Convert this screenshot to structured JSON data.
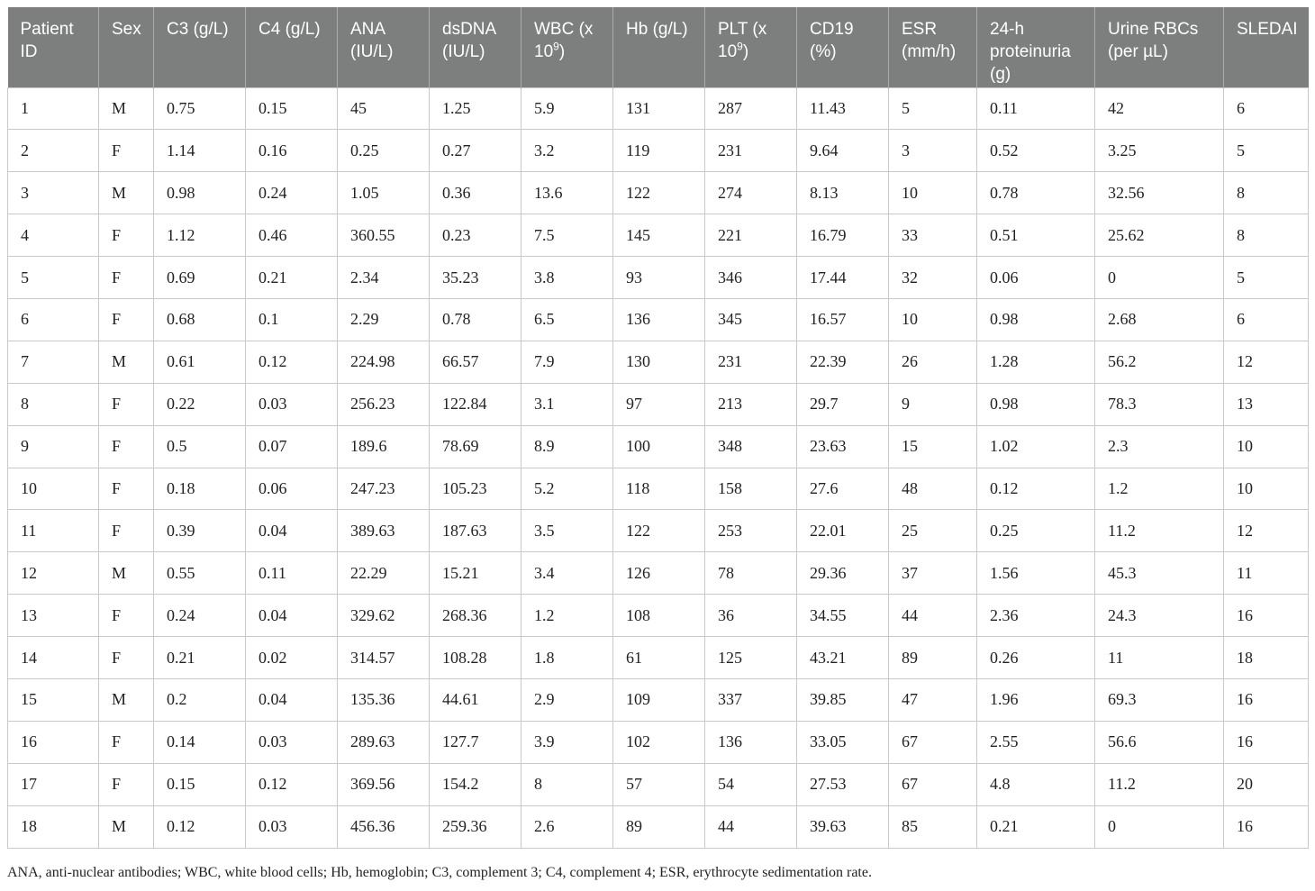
{
  "table": {
    "headers": [
      {
        "text": "Patient ID",
        "sup": ""
      },
      {
        "text": "Sex",
        "sup": ""
      },
      {
        "text": "C3 (g/L)",
        "sup": ""
      },
      {
        "text": "C4 (g/L)",
        "sup": ""
      },
      {
        "text": "ANA (IU/L)",
        "sup": ""
      },
      {
        "text": "dsDNA (IU/L)",
        "sup": ""
      },
      {
        "text": "WBC (x 10",
        "sup": "9",
        "after": ")"
      },
      {
        "text": "Hb (g/L)",
        "sup": ""
      },
      {
        "text": "PLT (x 10",
        "sup": "9",
        "after": ")"
      },
      {
        "text": "CD19 (%)",
        "sup": ""
      },
      {
        "text": "ESR (mm/h)",
        "sup": ""
      },
      {
        "text": "24-h proteinuria (g)",
        "sup": ""
      },
      {
        "text": "Urine RBCs (per µL)",
        "sup": ""
      },
      {
        "text": "SLEDAI",
        "sup": ""
      }
    ],
    "rows": [
      [
        "1",
        "M",
        "0.75",
        "0.15",
        "45",
        "1.25",
        "5.9",
        "131",
        "287",
        "11.43",
        "5",
        "0.11",
        "42",
        "6"
      ],
      [
        "2",
        "F",
        "1.14",
        "0.16",
        "0.25",
        "0.27",
        "3.2",
        "119",
        "231",
        "9.64",
        "3",
        "0.52",
        "3.25",
        "5"
      ],
      [
        "3",
        "M",
        "0.98",
        "0.24",
        "1.05",
        "0.36",
        "13.6",
        "122",
        "274",
        "8.13",
        "10",
        "0.78",
        "32.56",
        "8"
      ],
      [
        "4",
        "F",
        "1.12",
        "0.46",
        "360.55",
        "0.23",
        "7.5",
        "145",
        "221",
        "16.79",
        "33",
        "0.51",
        "25.62",
        "8"
      ],
      [
        "5",
        "F",
        "0.69",
        "0.21",
        "2.34",
        "35.23",
        "3.8",
        "93",
        "346",
        "17.44",
        "32",
        "0.06",
        "0",
        "5"
      ],
      [
        "6",
        "F",
        "0.68",
        "0.1",
        "2.29",
        "0.78",
        "6.5",
        "136",
        "345",
        "16.57",
        "10",
        "0.98",
        "2.68",
        "6"
      ],
      [
        "7",
        "M",
        "0.61",
        "0.12",
        "224.98",
        "66.57",
        "7.9",
        "130",
        "231",
        "22.39",
        "26",
        "1.28",
        "56.2",
        "12"
      ],
      [
        "8",
        "F",
        "0.22",
        "0.03",
        "256.23",
        "122.84",
        "3.1",
        "97",
        "213",
        "29.7",
        "9",
        "0.98",
        "78.3",
        "13"
      ],
      [
        "9",
        "F",
        "0.5",
        "0.07",
        "189.6",
        "78.69",
        "8.9",
        "100",
        "348",
        "23.63",
        "15",
        "1.02",
        "2.3",
        "10"
      ],
      [
        "10",
        "F",
        "0.18",
        "0.06",
        "247.23",
        "105.23",
        "5.2",
        "118",
        "158",
        "27.6",
        "48",
        "0.12",
        "1.2",
        "10"
      ],
      [
        "11",
        "F",
        "0.39",
        "0.04",
        "389.63",
        "187.63",
        "3.5",
        "122",
        "253",
        "22.01",
        "25",
        "0.25",
        "11.2",
        "12"
      ],
      [
        "12",
        "M",
        "0.55",
        "0.11",
        "22.29",
        "15.21",
        "3.4",
        "126",
        "78",
        "29.36",
        "37",
        "1.56",
        "45.3",
        "11"
      ],
      [
        "13",
        "F",
        "0.24",
        "0.04",
        "329.62",
        "268.36",
        "1.2",
        "108",
        "36",
        "34.55",
        "44",
        "2.36",
        "24.3",
        "16"
      ],
      [
        "14",
        "F",
        "0.21",
        "0.02",
        "314.57",
        "108.28",
        "1.8",
        "61",
        "125",
        "43.21",
        "89",
        "0.26",
        "11",
        "18"
      ],
      [
        "15",
        "M",
        "0.2",
        "0.04",
        "135.36",
        "44.61",
        "2.9",
        "109",
        "337",
        "39.85",
        "47",
        "1.96",
        "69.3",
        "16"
      ],
      [
        "16",
        "F",
        "0.14",
        "0.03",
        "289.63",
        "127.7",
        "3.9",
        "102",
        "136",
        "33.05",
        "67",
        "2.55",
        "56.6",
        "16"
      ],
      [
        "17",
        "F",
        "0.15",
        "0.12",
        "369.56",
        "154.2",
        "8",
        "57",
        "54",
        "27.53",
        "67",
        "4.8",
        "11.2",
        "20"
      ],
      [
        "18",
        "M",
        "0.12",
        "0.03",
        "456.36",
        "259.36",
        "2.6",
        "89",
        "44",
        "39.63",
        "85",
        "0.21",
        "0",
        "16"
      ]
    ]
  },
  "footnote": "ANA, anti-nuclear antibodies; WBC, white blood cells; Hb, hemoglobin; C3, complement 3; C4, complement 4; ESR, erythrocyte sedimentation rate."
}
